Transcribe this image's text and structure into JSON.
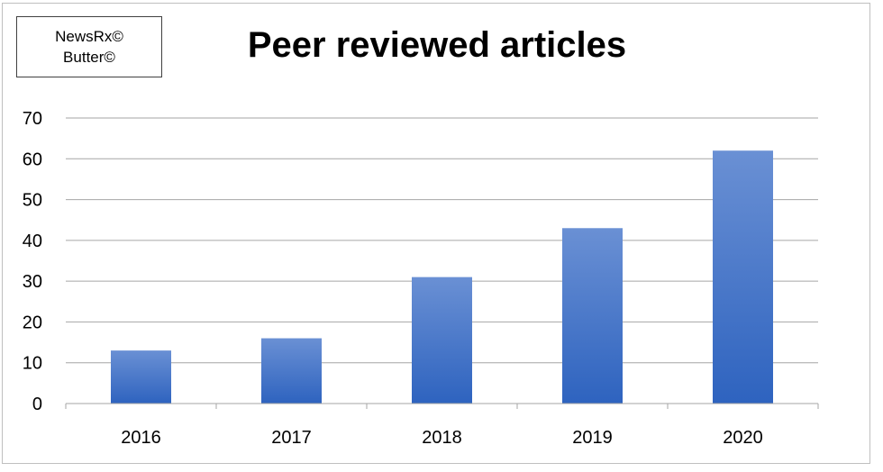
{
  "badge": {
    "lines": [
      "NewsRx©",
      "Butter©"
    ]
  },
  "chart_data": {
    "type": "bar",
    "title": "Peer reviewed articles",
    "categories": [
      "2016",
      "2017",
      "2018",
      "2019",
      "2020"
    ],
    "values": [
      13,
      16,
      31,
      43,
      62
    ],
    "xlabel": "",
    "ylabel": "",
    "ylim": [
      0,
      70
    ],
    "yticks": [
      0,
      10,
      20,
      30,
      40,
      50,
      60,
      70
    ],
    "grid": true,
    "legend": "none",
    "colors": {
      "bar_top": "#6a90d4",
      "bar_bottom": "#2e63bf",
      "grid": "#a6a6a6"
    }
  }
}
